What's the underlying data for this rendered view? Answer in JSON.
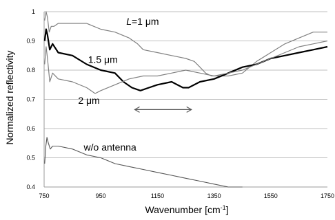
{
  "chart_data": {
    "type": "line",
    "xlabel": "Wavenumber [cm",
    "xlabel_sup": "-1",
    "xlabel_end": "]",
    "ylabel": "Normalized reflectivity",
    "xlim": [
      750,
      1750
    ],
    "ylim": [
      0.4,
      1.0
    ],
    "x_ticks": [
      "750",
      "950",
      "1150",
      "1350",
      "1550",
      "1750"
    ],
    "y_ticks": [
      "0.4",
      "0.5",
      "0.6",
      "0.7",
      "0.8",
      "0.9",
      "1"
    ],
    "grid": "horizontal",
    "series": [
      {
        "name": "L=1 μm",
        "color": "#808080",
        "x": [
          752,
          757,
          762,
          768,
          775,
          785,
          800,
          850,
          900,
          950,
          1000,
          1050,
          1080,
          1100,
          1150,
          1200,
          1250,
          1280,
          1300,
          1320,
          1340,
          1400,
          1450,
          1500,
          1550,
          1600,
          1650,
          1700,
          1750
        ],
        "y": [
          0.97,
          1.0,
          0.98,
          0.93,
          0.95,
          0.95,
          0.96,
          0.96,
          0.96,
          0.94,
          0.93,
          0.91,
          0.89,
          0.87,
          0.86,
          0.85,
          0.84,
          0.83,
          0.81,
          0.79,
          0.78,
          0.78,
          0.79,
          0.83,
          0.86,
          0.89,
          0.91,
          0.93,
          0.93
        ]
      },
      {
        "name": "1.5 μm",
        "color": "#000000",
        "x": [
          752,
          757,
          762,
          770,
          780,
          800,
          850,
          900,
          950,
          1000,
          1030,
          1060,
          1090,
          1120,
          1150,
          1200,
          1240,
          1260,
          1300,
          1350,
          1400,
          1450,
          1500,
          1550,
          1600,
          1650,
          1700,
          1750
        ],
        "y": [
          0.9,
          0.94,
          0.92,
          0.87,
          0.89,
          0.86,
          0.85,
          0.82,
          0.8,
          0.79,
          0.76,
          0.74,
          0.73,
          0.74,
          0.75,
          0.76,
          0.74,
          0.74,
          0.76,
          0.77,
          0.79,
          0.81,
          0.82,
          0.84,
          0.85,
          0.86,
          0.87,
          0.88
        ]
      },
      {
        "name": "2 μm",
        "color": "#808080",
        "x": [
          752,
          757,
          762,
          770,
          780,
          800,
          850,
          900,
          930,
          950,
          1000,
          1050,
          1100,
          1150,
          1200,
          1250,
          1300,
          1350,
          1400,
          1450,
          1500,
          1550,
          1600,
          1650,
          1700,
          1750
        ],
        "y": [
          0.82,
          0.88,
          0.84,
          0.76,
          0.79,
          0.77,
          0.76,
          0.74,
          0.72,
          0.73,
          0.75,
          0.77,
          0.78,
          0.78,
          0.79,
          0.8,
          0.79,
          0.78,
          0.79,
          0.8,
          0.82,
          0.84,
          0.86,
          0.88,
          0.89,
          0.9
        ]
      },
      {
        "name": "w/o antenna",
        "color": "#555555",
        "x": [
          752,
          756,
          760,
          765,
          772,
          780,
          800,
          850,
          900,
          950,
          1000,
          1050,
          1100,
          1150,
          1200,
          1250,
          1300,
          1350,
          1400,
          1450
        ],
        "y": [
          0.48,
          0.54,
          0.57,
          0.55,
          0.53,
          0.54,
          0.54,
          0.53,
          0.51,
          0.5,
          0.48,
          0.47,
          0.46,
          0.45,
          0.44,
          0.43,
          0.42,
          0.41,
          0.4,
          0.4
        ]
      }
    ],
    "annotations": [
      {
        "text": "L",
        "rest": "=1 μm",
        "italic_first": true,
        "series": "L=1 μm"
      },
      {
        "text": "1.5 μm",
        "series": "1.5 μm"
      },
      {
        "text": "2 μm",
        "series": "2 μm"
      },
      {
        "text": "w/o  antenna",
        "series": "w/o antenna"
      }
    ],
    "arrow": {
      "x_start": 1070,
      "x_end": 1270,
      "y": 0.665,
      "double_headed": true
    }
  }
}
